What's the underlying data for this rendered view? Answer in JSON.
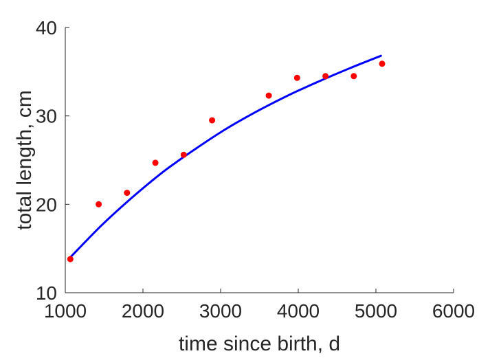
{
  "chart_data": {
    "type": "scatter",
    "xlabel": "time since birth, d",
    "ylabel": "total length, cm",
    "xlim": [
      1000,
      6000
    ],
    "ylim": [
      10,
      40
    ],
    "xticks": [
      "1000",
      "2000",
      "3000",
      "4000",
      "5000",
      "6000"
    ],
    "yticks": [
      "10",
      "20",
      "30",
      "40"
    ],
    "grid": false,
    "box": false,
    "series": [
      {
        "kind": "points",
        "marker": "filled-circle",
        "color": "#ff0000",
        "x": [
          1065,
          1430,
          1795,
          2160,
          2525,
          2890,
          3620,
          3985,
          4350,
          4715,
          5080
        ],
        "y": [
          13.8,
          20.0,
          21.3,
          24.7,
          25.6,
          29.5,
          32.3,
          34.3,
          34.5,
          34.5,
          35.9
        ]
      },
      {
        "kind": "fitted-curve",
        "color": "#0000ff",
        "x": [
          1065,
          1465,
          1865,
          2265,
          2665,
          3065,
          3465,
          3865,
          4265,
          4665,
          5065
        ],
        "y": [
          14.0,
          17.6,
          20.8,
          23.7,
          26.2,
          28.5,
          30.5,
          32.3,
          33.9,
          35.4,
          36.8
        ]
      }
    ]
  }
}
